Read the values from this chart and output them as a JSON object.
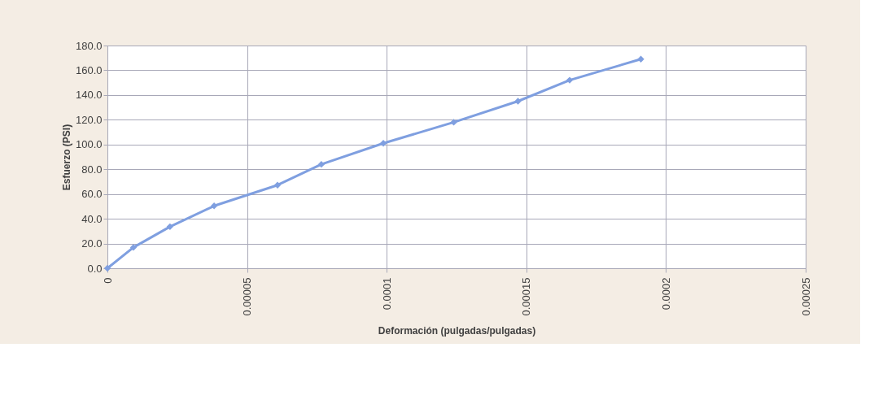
{
  "chart_data": {
    "type": "line",
    "xlabel": "Deformación (pulgadas/pulgadas)",
    "ylabel": "Esfuerzo (PSI)",
    "x": [
      0,
      9.3e-06,
      2.24e-05,
      3.82e-05,
      6.09e-05,
      7.66e-05,
      9.88e-05,
      0.000124,
      0.000147,
      0.0001655,
      0.000191
    ],
    "series": [
      {
        "color": "#7f9fe0",
        "values": [
          0,
          16.8,
          33.6,
          50.4,
          67.2,
          84.0,
          101.0,
          118.0,
          135.0,
          152.0,
          169.0
        ]
      }
    ],
    "xlim": [
      0,
      0.00025
    ],
    "xticks": [
      {
        "value": 0,
        "label": "0"
      },
      {
        "value": 5e-05,
        "label": "0.00005"
      },
      {
        "value": 0.0001,
        "label": "0.0001"
      },
      {
        "value": 0.00015,
        "label": "0.00015"
      },
      {
        "value": 0.0002,
        "label": "0.0002"
      },
      {
        "value": 0.00025,
        "label": "0.00025"
      }
    ],
    "ylim": [
      0,
      180
    ],
    "yticks": [
      {
        "value": 0,
        "label": "0.0"
      },
      {
        "value": 20,
        "label": "20.0"
      },
      {
        "value": 40,
        "label": "40.0"
      },
      {
        "value": 60,
        "label": "60.0"
      },
      {
        "value": 80,
        "label": "80.0"
      },
      {
        "value": 100,
        "label": "100.0"
      },
      {
        "value": 120,
        "label": "120.0"
      },
      {
        "value": 140,
        "label": "140.0"
      },
      {
        "value": 160,
        "label": "160.0"
      },
      {
        "value": 180,
        "label": "180.0"
      }
    ],
    "grid": true,
    "marker": "diamond",
    "line_style": "solid"
  }
}
